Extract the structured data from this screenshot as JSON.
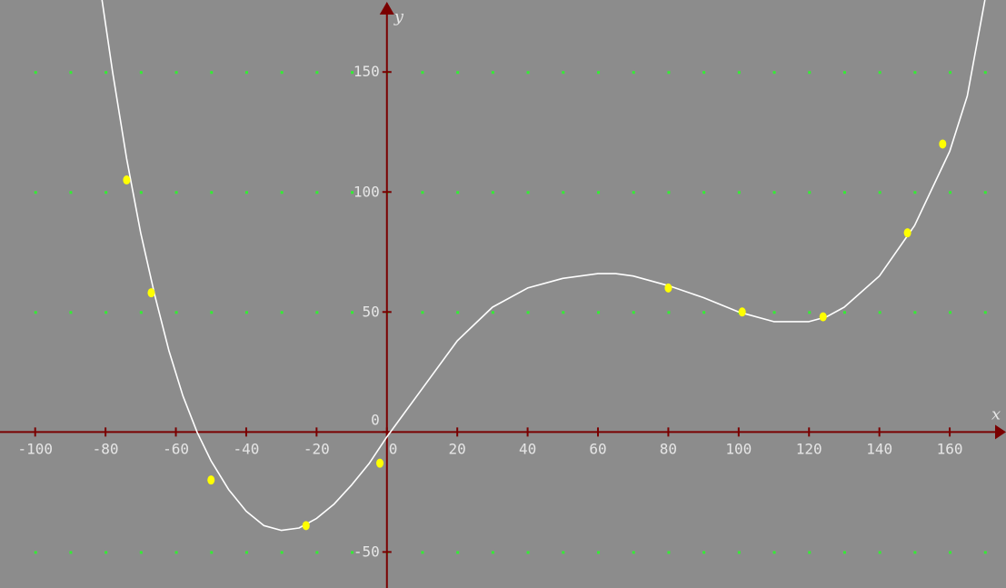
{
  "chart_data": {
    "type": "scatter",
    "title": "",
    "xlabel": "x",
    "ylabel": "y",
    "xlim": [
      -110,
      176
    ],
    "ylim": [
      -65,
      180
    ],
    "x_ticks": [
      -100,
      -80,
      -60,
      -40,
      -20,
      0,
      20,
      40,
      60,
      80,
      100,
      120,
      140,
      160
    ],
    "x_tick_labels": [
      "-100",
      "-80",
      "-60",
      "-40",
      "-20",
      "0",
      "20",
      "40",
      "60",
      "80",
      "100",
      "120",
      "140",
      "160"
    ],
    "y_ticks": [
      -50,
      0,
      50,
      100,
      150
    ],
    "y_tick_labels": [
      "-50",
      "0",
      "50",
      "100",
      "150"
    ],
    "grid": true,
    "colors": {
      "background": "#8c8c8c",
      "axis": "#7a0000",
      "grid_dot": "#33ee33",
      "curve": "#ffffff",
      "points": "#ffff00"
    },
    "series": [
      {
        "kind": "points",
        "x": [
          -74,
          -67,
          -50,
          -23,
          -2,
          80,
          101,
          124,
          148,
          158
        ],
        "y": [
          105,
          58,
          -20,
          -39,
          -13,
          60,
          50,
          48,
          83,
          120
        ]
      },
      {
        "kind": "curve",
        "x": [
          -82,
          -78,
          -74,
          -70,
          -66,
          -62,
          -58,
          -54,
          -50,
          -45,
          -40,
          -35,
          -30,
          -25,
          -20,
          -15,
          -10,
          -5,
          0,
          10,
          20,
          30,
          40,
          50,
          60,
          65,
          70,
          80,
          90,
          100,
          110,
          115,
          120,
          125,
          130,
          140,
          150,
          160,
          165,
          170
        ],
        "y": [
          190,
          150,
          114,
          83,
          57,
          34,
          15,
          0,
          -12,
          -24,
          -33,
          -39,
          -41,
          -40,
          -36,
          -30,
          -22,
          -13,
          -2,
          18,
          38,
          52,
          60,
          64,
          66,
          66,
          65,
          61,
          56,
          50,
          46,
          46,
          46,
          48,
          52,
          65,
          86,
          117,
          140,
          180
        ]
      }
    ]
  }
}
